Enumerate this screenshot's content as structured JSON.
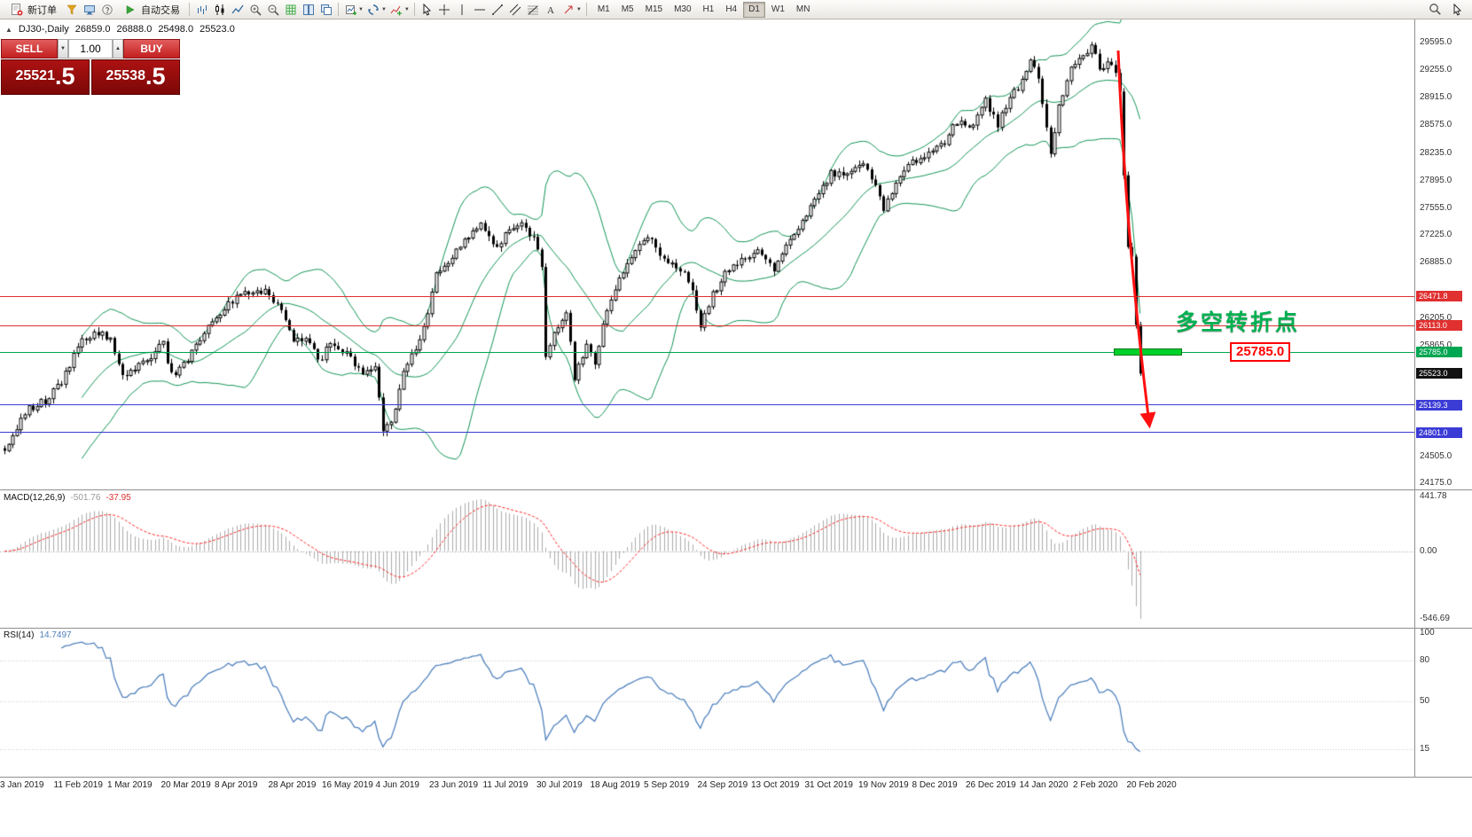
{
  "toolbar": {
    "new_order_label": "新订单",
    "auto_trading_label": "自动交易",
    "timeframes": [
      "M1",
      "M5",
      "M15",
      "M30",
      "H1",
      "H4",
      "D1",
      "W1",
      "MN"
    ],
    "active_timeframe": "D1"
  },
  "chart_header": {
    "symbol": "DJ30-,Daily",
    "open": "26859.0",
    "high": "26888.0",
    "low": "25498.0",
    "close": "25523.0"
  },
  "trade_panel": {
    "sell_label": "SELL",
    "buy_label": "BUY",
    "volume": "1.00",
    "sell_price": "25521.5",
    "buy_price": "25538.5"
  },
  "annotations": {
    "turning_point": "多空转折点",
    "price_label": "25785.0"
  },
  "chart_data": {
    "type": "candlestick",
    "symbol": "DJ30-",
    "period": "Daily",
    "price_axis_range": {
      "min": 24175,
      "max": 29680
    },
    "price_axis_ticks": [
      29595.0,
      29255.0,
      28915.0,
      28575.0,
      28235.0,
      27895.0,
      27555.0,
      27225.0,
      26885.0,
      26205.0,
      25865.0,
      24505.0,
      24175.0
    ],
    "markers": [
      {
        "price": 26471.8,
        "label": "26471.8",
        "color": "#e03030",
        "line": true
      },
      {
        "price": 26113.0,
        "label": "26113.0",
        "color": "#e03030",
        "line": true
      },
      {
        "price": 25785.0,
        "label": "25785.0",
        "color": "#00a651",
        "line": true
      },
      {
        "price": 25523.0,
        "label": "25523.0",
        "color": "#111111",
        "line": false
      },
      {
        "price": 25139.3,
        "label": "25139.3",
        "color": "#3b3bd6",
        "line": true
      },
      {
        "price": 24801.0,
        "label": "24801.0",
        "color": "#3b3bd6",
        "line": true
      }
    ],
    "dates": [
      "3 Jan 2019",
      "11 Feb 2019",
      "1 Mar 2019",
      "20 Mar 2019",
      "8 Apr 2019",
      "28 Apr 2019",
      "16 May 2019",
      "4 Jun 2019",
      "23 Jun 2019",
      "11 Jul 2019",
      "30 Jul 2019",
      "18 Aug 2019",
      "5 Sep 2019",
      "24 Sep 2019",
      "13 Oct 2019",
      "31 Oct 2019",
      "19 Nov 2019",
      "8 Dec 2019",
      "26 Dec 2019",
      "14 Jan 2020",
      "2 Feb 2020",
      "20 Feb 2020"
    ],
    "bars": 280,
    "close_keypoints": [
      [
        0,
        24575
      ],
      [
        5,
        25060
      ],
      [
        10,
        25190
      ],
      [
        14,
        25410
      ],
      [
        19,
        25950
      ],
      [
        23,
        26030
      ],
      [
        26,
        25920
      ],
      [
        29,
        25470
      ],
      [
        34,
        25650
      ],
      [
        39,
        25890
      ],
      [
        41,
        25500
      ],
      [
        45,
        25680
      ],
      [
        50,
        26120
      ],
      [
        55,
        26380
      ],
      [
        60,
        26540
      ],
      [
        65,
        26510
      ],
      [
        68,
        26300
      ],
      [
        71,
        25960
      ],
      [
        75,
        25940
      ],
      [
        77,
        25660
      ],
      [
        80,
        25880
      ],
      [
        84,
        25770
      ],
      [
        88,
        25490
      ],
      [
        91,
        25580
      ],
      [
        93,
        24815
      ],
      [
        95,
        24900
      ],
      [
        98,
        25530
      ],
      [
        103,
        26060
      ],
      [
        106,
        26750
      ],
      [
        110,
        26950
      ],
      [
        114,
        27220
      ],
      [
        117,
        27330
      ],
      [
        121,
        27090
      ],
      [
        124,
        27280
      ],
      [
        127,
        27350
      ],
      [
        130,
        27200
      ],
      [
        132,
        26860
      ],
      [
        133,
        25720
      ],
      [
        135,
        26000
      ],
      [
        138,
        26280
      ],
      [
        140,
        25480
      ],
      [
        143,
        25890
      ],
      [
        145,
        25630
      ],
      [
        147,
        26120
      ],
      [
        151,
        26730
      ],
      [
        155,
        27000
      ],
      [
        158,
        27220
      ],
      [
        162,
        26940
      ],
      [
        166,
        26820
      ],
      [
        169,
        26570
      ],
      [
        171,
        26080
      ],
      [
        174,
        26500
      ],
      [
        178,
        26820
      ],
      [
        182,
        26960
      ],
      [
        186,
        27020
      ],
      [
        189,
        26790
      ],
      [
        192,
        27070
      ],
      [
        195,
        27270
      ],
      [
        199,
        27680
      ],
      [
        203,
        27980
      ],
      [
        207,
        28000
      ],
      [
        211,
        28120
      ],
      [
        214,
        27820
      ],
      [
        216,
        27550
      ],
      [
        219,
        27850
      ],
      [
        223,
        28130
      ],
      [
        227,
        28240
      ],
      [
        231,
        28380
      ],
      [
        234,
        28620
      ],
      [
        238,
        28550
      ],
      [
        241,
        28870
      ],
      [
        244,
        28580
      ],
      [
        247,
        28940
      ],
      [
        250,
        29100
      ],
      [
        252,
        29350
      ],
      [
        254,
        29160
      ],
      [
        257,
        28250
      ],
      [
        259,
        28800
      ],
      [
        262,
        29300
      ],
      [
        265,
        29450
      ],
      [
        267,
        29550
      ],
      [
        269,
        29280
      ],
      [
        271,
        29350
      ],
      [
        273,
        29220
      ],
      [
        274,
        28990
      ],
      [
        275,
        27960
      ],
      [
        276,
        27080
      ],
      [
        277,
        26960
      ],
      [
        278,
        26120
      ],
      [
        279,
        25523
      ]
    ],
    "indicators": {
      "bollinger": {
        "label": "Bollinger Bands",
        "period": 20,
        "deviation": 2,
        "color": "#119454"
      },
      "macd": {
        "label": "MACD(12,26,9)",
        "main_value": "-501.76",
        "signal_value": "-37.95",
        "axis_max": 441.78,
        "axis_min": -546.69,
        "axis_labels": [
          "441.78",
          "0.00",
          "-546.69"
        ],
        "hist_color": "#ababab",
        "signal_color": "#ff2020"
      },
      "rsi": {
        "label": "RSI(14)",
        "value": "14.7497",
        "range": [
          0,
          100
        ],
        "axis_labels": [
          100,
          80,
          50,
          15
        ],
        "color": "#4f81bd"
      }
    }
  }
}
